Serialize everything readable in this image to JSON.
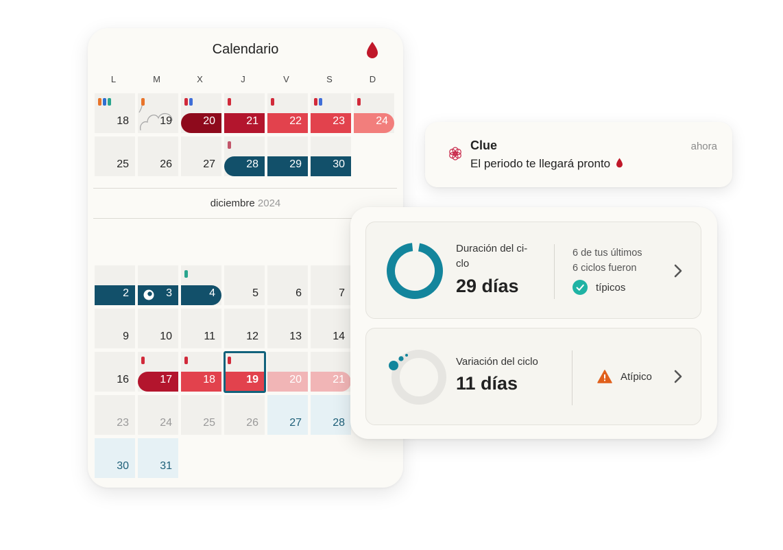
{
  "calendar": {
    "title": "Calendario",
    "weekdays": [
      "L",
      "M",
      "X",
      "J",
      "V",
      "S",
      "D"
    ],
    "month_name": "diciembre",
    "month_year": "2024",
    "nov_row1": [
      "18",
      "19",
      "20",
      "21",
      "22",
      "23",
      "24"
    ],
    "nov_row2": [
      "25",
      "26",
      "27",
      "28",
      "29",
      "30"
    ],
    "dec_row1": [
      "2",
      "3",
      "4",
      "5",
      "6",
      "7"
    ],
    "dec_row2": [
      "9",
      "10",
      "11",
      "12",
      "13",
      "14"
    ],
    "dec_row3": [
      "16",
      "17",
      "18",
      "19",
      "20",
      "21"
    ],
    "dec_row4": [
      "23",
      "24",
      "25",
      "26",
      "27",
      "28"
    ],
    "dec_row5": [
      "30",
      "31"
    ],
    "selected_day": "19",
    "colors": {
      "period_dark": "#8e0a1c",
      "period": "#b3152d",
      "period_light": "#e2424d",
      "period_faint": "#f27e7c",
      "fertile": "#12506a",
      "predicted": "#f1b5b6",
      "accent": "#12627c"
    }
  },
  "notification": {
    "app": "Clue",
    "time": "ahora",
    "message": "El periodo te llegará pronto",
    "icon": "clue-flower-icon"
  },
  "stats": {
    "cycle_length": {
      "label": "Duración del ci-\nclo",
      "value": "29 días",
      "history_line1": "6 de tus últimos",
      "history_line2": "6 ciclos fueron",
      "status": "típicos"
    },
    "variation": {
      "label": "Variación del ciclo",
      "value": "11 días",
      "status": "Atípico"
    }
  }
}
